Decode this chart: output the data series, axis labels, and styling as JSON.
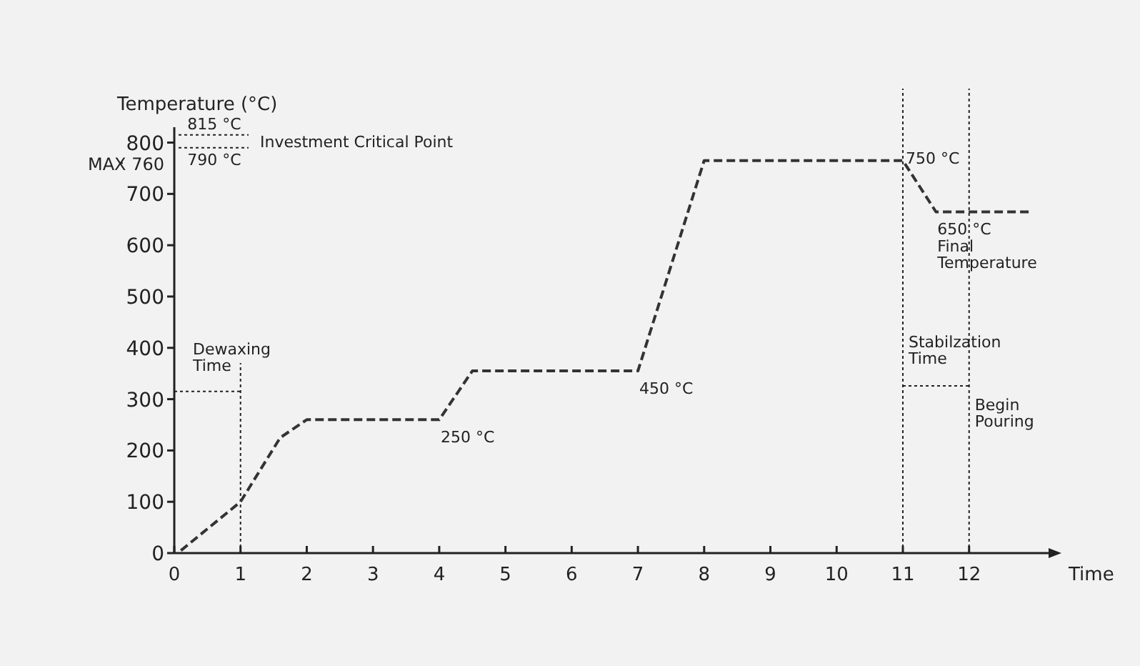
{
  "chart_data": {
    "type": "line",
    "xlabel": "Time",
    "ylabel": "Temperature (°C)",
    "x": [
      0.1,
      1,
      1.6,
      2,
      4,
      4.5,
      7,
      8,
      11,
      11.5,
      12.9
    ],
    "series": [
      {
        "color": "#333333",
        "values": [
          5,
          100,
          225,
          260,
          260,
          355,
          355,
          765,
          765,
          665,
          665
        ]
      }
    ],
    "xlim": [
      0,
      13.2
    ],
    "ylim": [
      0,
      830
    ],
    "xticks": [
      0,
      1,
      2,
      3,
      4,
      5,
      6,
      7,
      8,
      9,
      10,
      11,
      12
    ],
    "yticks": [
      0,
      100,
      200,
      300,
      400,
      500,
      600,
      700,
      {
        "value": 760,
        "label": "MAX 760"
      },
      800
    ],
    "line_style": "dashed",
    "marker": "none",
    "grid": false,
    "ref_lines": [
      {
        "axis": "y",
        "value": 815,
        "label": "815 °C",
        "line_style": "dotted"
      },
      {
        "axis": "y",
        "value": 790,
        "label": "790 °C",
        "line_style": "dotted"
      },
      {
        "axis": "x",
        "value": 1,
        "label": "Dewaxing\nTime",
        "line_style": "dotted"
      },
      {
        "axis": "x",
        "value": 11,
        "label": "Stabilzation\nTime",
        "line_style": "dotted"
      },
      {
        "axis": "x",
        "value": 12,
        "label": "Begin\nPouring",
        "line_style": "dotted"
      }
    ],
    "annotations": [
      "Investment Critical Point",
      {
        "text": "250 °C",
        "x": 4,
        "y": 260
      },
      {
        "text": "450 °C",
        "x": 7,
        "y": 355
      },
      {
        "text": "750 °C",
        "x": 11,
        "y": 765
      },
      {
        "text": "650 °C\nFinal\nTemperature",
        "x": 11.5,
        "y": 665
      }
    ]
  }
}
